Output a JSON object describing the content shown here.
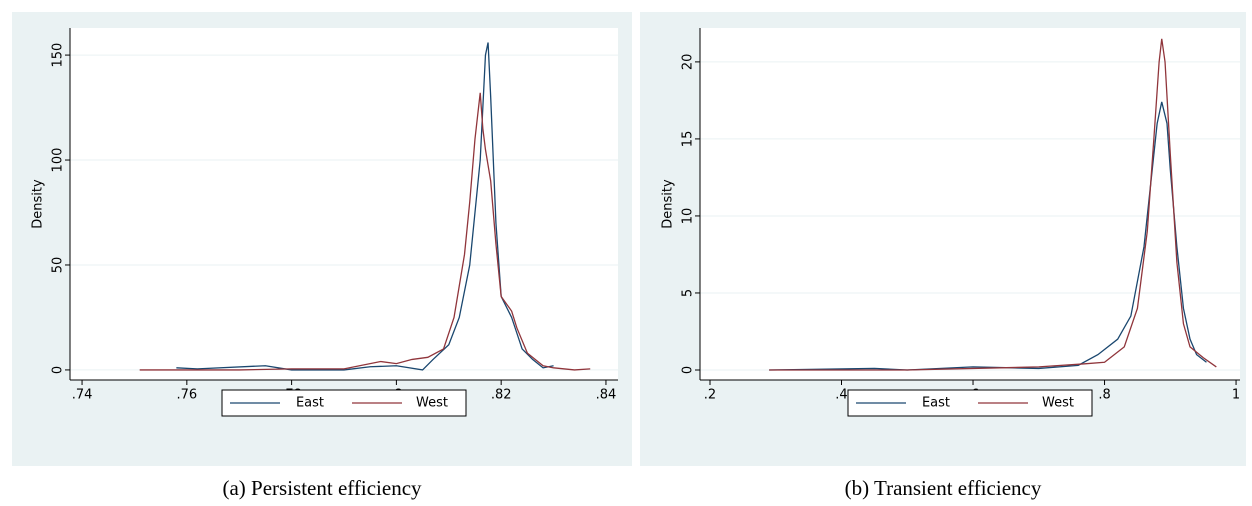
{
  "chart_data": [
    {
      "type": "line",
      "caption": "(a) Persistent efficiency",
      "ylabel": "Density",
      "xlim": [
        0.7377,
        0.8423
      ],
      "ylim": [
        -4.8,
        162.9
      ],
      "xticks": [
        {
          "value": 0.74,
          "label": ".74"
        },
        {
          "value": 0.76,
          "label": ".76"
        },
        {
          "value": 0.78,
          "label": ".78"
        },
        {
          "value": 0.8,
          "label": ".8"
        },
        {
          "value": 0.82,
          "label": ".82"
        },
        {
          "value": 0.84,
          "label": ".84"
        }
      ],
      "yticks": [
        0,
        50,
        100,
        150
      ],
      "grid": true,
      "series": [
        {
          "name": "East",
          "color": "#1a476f",
          "x": [
            0.758,
            0.762,
            0.775,
            0.78,
            0.79,
            0.795,
            0.8,
            0.805,
            0.807,
            0.81,
            0.812,
            0.814,
            0.816,
            0.817,
            0.8175,
            0.818,
            0.819,
            0.82,
            0.822,
            0.824,
            0.826,
            0.828,
            0.83
          ],
          "values": [
            1,
            0.5,
            2,
            0,
            0,
            1.5,
            2,
            0,
            5,
            12,
            25,
            50,
            100,
            150,
            156,
            130,
            70,
            35,
            25,
            10,
            5,
            1,
            2
          ]
        },
        {
          "name": "West",
          "color": "#90353b",
          "x": [
            0.751,
            0.77,
            0.78,
            0.79,
            0.797,
            0.8,
            0.803,
            0.806,
            0.809,
            0.811,
            0.813,
            0.814,
            0.815,
            0.816,
            0.8165,
            0.817,
            0.818,
            0.819,
            0.82,
            0.822,
            0.823,
            0.825,
            0.828,
            0.83,
            0.834,
            0.837
          ],
          "values": [
            0,
            0,
            0.5,
            0.5,
            4,
            3,
            5,
            6,
            10,
            25,
            55,
            80,
            110,
            132,
            115,
            105,
            90,
            60,
            35,
            28,
            20,
            8,
            2,
            1,
            0,
            0.5
          ]
        }
      ]
    },
    {
      "type": "line",
      "caption": "(b) Transient efficiency",
      "ylabel": "Density",
      "xlim": [
        0.1848,
        1.006
      ],
      "ylim": [
        -0.65,
        22.2
      ],
      "xticks": [
        {
          "value": 0.2,
          "label": ".2"
        },
        {
          "value": 0.4,
          "label": ".4"
        },
        {
          "value": 0.6,
          "label": ".6"
        },
        {
          "value": 0.8,
          "label": ".8"
        },
        1
      ],
      "yticks": [
        0,
        5,
        10,
        15,
        20
      ],
      "grid": true,
      "series": [
        {
          "name": "East",
          "color": "#1a476f",
          "x": [
            0.29,
            0.45,
            0.5,
            0.6,
            0.7,
            0.76,
            0.79,
            0.82,
            0.84,
            0.86,
            0.87,
            0.88,
            0.887,
            0.895,
            0.9,
            0.91,
            0.92,
            0.93,
            0.94,
            0.955
          ],
          "values": [
            0,
            0.1,
            0,
            0.2,
            0.1,
            0.3,
            1,
            2,
            3.5,
            8,
            12,
            16,
            17.4,
            16,
            13,
            8,
            4,
            2,
            1,
            0.5
          ]
        },
        {
          "name": "West",
          "color": "#90353b",
          "x": [
            0.29,
            0.5,
            0.6,
            0.7,
            0.77,
            0.8,
            0.83,
            0.85,
            0.865,
            0.875,
            0.883,
            0.887,
            0.892,
            0.9,
            0.91,
            0.92,
            0.93,
            0.95,
            0.97
          ],
          "values": [
            0,
            0,
            0.1,
            0.2,
            0.4,
            0.5,
            1.5,
            4,
            9,
            15,
            20,
            21.5,
            20,
            14,
            7,
            3,
            1.5,
            0.8,
            0.2
          ]
        }
      ]
    }
  ]
}
